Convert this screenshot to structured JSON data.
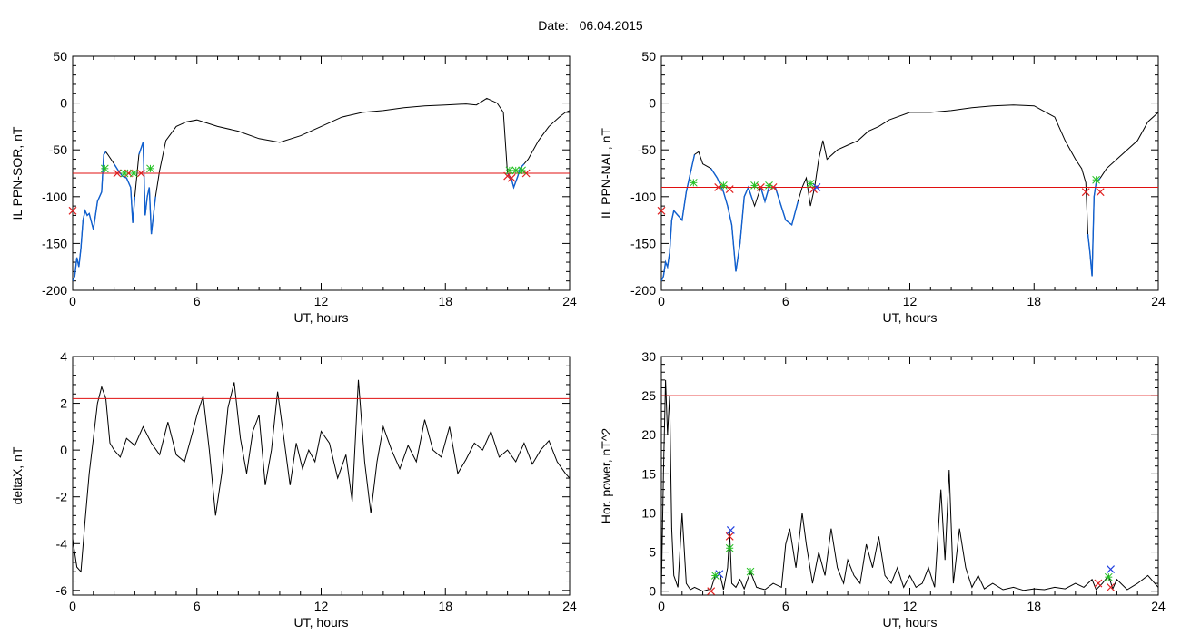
{
  "page": {
    "title_label": "Date:",
    "title_date": "06.04.2015"
  },
  "colors": {
    "trace": "#000000",
    "threshold": "#e01010",
    "segment": "#1060d0",
    "marker_start": "#22c022",
    "marker_end": "#e02020",
    "marker_peak": "#2040e0"
  },
  "chart_data": [
    {
      "type": "line",
      "id": "sor",
      "title": "",
      "xlabel": "UT, hours",
      "ylabel": "IL PPN-SOR, nT",
      "xlim": [
        0,
        24
      ],
      "ylim": [
        -200,
        50
      ],
      "xticks": [
        0,
        6,
        12,
        18,
        24
      ],
      "yticks": [
        -200,
        -150,
        -100,
        -50,
        0,
        50
      ],
      "threshold": -75,
      "x": [
        0,
        0.1,
        0.2,
        0.3,
        0.4,
        0.5,
        0.6,
        0.7,
        0.8,
        1.0,
        1.2,
        1.4,
        1.5,
        1.6,
        1.7,
        2.0,
        2.2,
        2.4,
        2.6,
        2.8,
        2.9,
        3.0,
        3.2,
        3.4,
        3.5,
        3.6,
        3.7,
        3.8,
        4.0,
        4.2,
        4.5,
        5.0,
        5.5,
        6.0,
        7.0,
        8.0,
        9.0,
        10.0,
        11.0,
        12.0,
        13.0,
        14.0,
        15.0,
        16.0,
        17.0,
        18.0,
        19.0,
        19.5,
        20.0,
        20.5,
        20.8,
        21.0,
        21.2,
        21.3,
        21.5,
        21.6,
        21.8,
        22.0,
        22.5,
        23.0,
        23.5,
        23.8,
        24.0
      ],
      "y": [
        -190,
        -185,
        -165,
        -175,
        -155,
        -125,
        -115,
        -120,
        -118,
        -135,
        -105,
        -95,
        -55,
        -52,
        -55,
        -65,
        -72,
        -78,
        -80,
        -90,
        -128,
        -100,
        -55,
        -42,
        -120,
        -100,
        -90,
        -140,
        -100,
        -72,
        -40,
        -25,
        -20,
        -18,
        -25,
        -30,
        -38,
        -42,
        -35,
        -25,
        -15,
        -10,
        -8,
        -5,
        -3,
        -2,
        -1,
        -2,
        5,
        0,
        -10,
        -75,
        -82,
        -90,
        -78,
        -70,
        -65,
        -60,
        -40,
        -25,
        -15,
        -10,
        -8
      ],
      "segments": [
        [
          0,
          1.6
        ],
        [
          2.0,
          3.0
        ],
        [
          3.2,
          4.0
        ],
        [
          21.0,
          21.8
        ]
      ],
      "markers_start": [
        [
          1.55,
          -70
        ],
        [
          2.5,
          -75
        ],
        [
          2.95,
          -75
        ],
        [
          3.75,
          -70
        ],
        [
          21.1,
          -72
        ],
        [
          21.4,
          -72
        ],
        [
          21.7,
          -72
        ]
      ],
      "markers_end": [
        [
          0,
          -115
        ],
        [
          2.15,
          -75
        ],
        [
          2.7,
          -75
        ],
        [
          3.3,
          -75
        ],
        [
          21.0,
          -78
        ],
        [
          21.2,
          -80
        ],
        [
          21.9,
          -75
        ]
      ]
    },
    {
      "type": "line",
      "id": "nal",
      "title": "",
      "xlabel": "UT, hours",
      "ylabel": "IL PPN-NAL, nT",
      "xlim": [
        0,
        24
      ],
      "ylim": [
        -200,
        50
      ],
      "xticks": [
        0,
        6,
        12,
        18,
        24
      ],
      "yticks": [
        -200,
        -150,
        -100,
        -50,
        0,
        50
      ],
      "threshold": -90,
      "x": [
        0,
        0.1,
        0.2,
        0.3,
        0.4,
        0.5,
        0.6,
        0.8,
        1.0,
        1.2,
        1.4,
        1.6,
        1.8,
        2.0,
        2.4,
        2.7,
        3.0,
        3.2,
        3.4,
        3.6,
        3.8,
        4.0,
        4.2,
        4.5,
        4.8,
        5.0,
        5.2,
        5.5,
        6.0,
        6.3,
        6.6,
        6.8,
        7.0,
        7.2,
        7.4,
        7.6,
        7.8,
        8.0,
        8.5,
        9.0,
        9.5,
        10.0,
        10.5,
        11.0,
        12.0,
        13.0,
        14.0,
        15.0,
        16.0,
        17.0,
        18.0,
        19.0,
        19.5,
        20.0,
        20.3,
        20.5,
        20.6,
        20.7,
        20.8,
        20.9,
        21.0,
        21.2,
        21.5,
        22.0,
        23.0,
        23.5,
        24.0
      ],
      "y": [
        -190,
        -185,
        -170,
        -175,
        -160,
        -125,
        -115,
        -120,
        -125,
        -95,
        -75,
        -55,
        -52,
        -65,
        -70,
        -80,
        -95,
        -110,
        -130,
        -180,
        -150,
        -100,
        -90,
        -110,
        -90,
        -105,
        -90,
        -90,
        -125,
        -130,
        -105,
        -90,
        -80,
        -110,
        -90,
        -60,
        -40,
        -60,
        -50,
        -45,
        -40,
        -30,
        -25,
        -18,
        -10,
        -10,
        -8,
        -5,
        -3,
        -2,
        -3,
        -15,
        -40,
        -60,
        -70,
        -85,
        -140,
        -160,
        -185,
        -100,
        -85,
        -80,
        -70,
        -60,
        -40,
        -20,
        -10
      ],
      "segments": [
        [
          0,
          1.6
        ],
        [
          2.4,
          3.4
        ],
        [
          3.4,
          4.4
        ],
        [
          4.8,
          6.6
        ],
        [
          20.6,
          21.2
        ]
      ],
      "markers_start": [
        [
          1.55,
          -85
        ],
        [
          3.0,
          -88
        ],
        [
          4.5,
          -88
        ],
        [
          5.2,
          -88
        ],
        [
          7.2,
          -86
        ],
        [
          21.0,
          -82
        ]
      ],
      "markers_end": [
        [
          0,
          -115
        ],
        [
          2.75,
          -90
        ],
        [
          3.3,
          -92
        ],
        [
          4.8,
          -90
        ],
        [
          5.4,
          -90
        ],
        [
          7.35,
          -92
        ],
        [
          20.5,
          -95
        ],
        [
          21.2,
          -95
        ]
      ],
      "markers_peak": [
        [
          7.5,
          -90
        ]
      ]
    },
    {
      "type": "line",
      "id": "deltax",
      "title": "",
      "xlabel": "UT, hours",
      "ylabel": "deltaX, nT",
      "xlim": [
        0,
        24
      ],
      "ylim": [
        -6.2,
        4
      ],
      "xticks": [
        0,
        6,
        12,
        18,
        24
      ],
      "yticks": [
        -6,
        -4,
        -2,
        0,
        2,
        4
      ],
      "threshold": 2.2,
      "x": [
        0,
        0.2,
        0.4,
        0.6,
        0.8,
        1.0,
        1.2,
        1.4,
        1.6,
        1.8,
        2.0,
        2.3,
        2.6,
        3.0,
        3.4,
        3.8,
        4.2,
        4.6,
        5.0,
        5.4,
        5.8,
        6.0,
        6.3,
        6.6,
        6.9,
        7.2,
        7.5,
        7.8,
        8.1,
        8.4,
        8.7,
        9.0,
        9.3,
        9.6,
        9.9,
        10.2,
        10.5,
        10.8,
        11.1,
        11.4,
        11.7,
        12.0,
        12.4,
        12.8,
        13.2,
        13.5,
        13.8,
        14.1,
        14.4,
        14.7,
        15.0,
        15.4,
        15.8,
        16.2,
        16.6,
        17.0,
        17.4,
        17.8,
        18.2,
        18.6,
        19.0,
        19.4,
        19.8,
        20.2,
        20.6,
        21.0,
        21.4,
        21.8,
        22.2,
        22.6,
        23.0,
        23.4,
        23.8,
        24.0
      ],
      "y": [
        -3.8,
        -5.0,
        -5.2,
        -3.0,
        -1.0,
        0.5,
        2.0,
        2.7,
        2.2,
        0.3,
        0.0,
        -0.3,
        0.5,
        0.2,
        1.0,
        0.3,
        -0.2,
        1.2,
        -0.2,
        -0.5,
        0.8,
        1.5,
        2.3,
        0.0,
        -2.8,
        -1.0,
        1.8,
        2.9,
        0.5,
        -1.0,
        0.8,
        1.5,
        -1.5,
        0.0,
        2.5,
        0.5,
        -1.5,
        0.3,
        -0.8,
        0.0,
        -0.5,
        0.8,
        0.3,
        -1.2,
        -0.2,
        -2.2,
        3.0,
        -0.5,
        -2.7,
        -0.5,
        1.0,
        0.0,
        -0.8,
        0.2,
        -0.5,
        1.3,
        0.0,
        -0.3,
        1.0,
        -1.0,
        -0.4,
        0.3,
        0.0,
        0.8,
        -0.3,
        0.0,
        -0.5,
        0.3,
        -0.6,
        0.0,
        0.4,
        -0.5,
        -1.0,
        -1.2
      ]
    },
    {
      "type": "line",
      "id": "power",
      "title": "",
      "xlabel": "UT, hours",
      "ylabel": "Hor. power, nT^2",
      "xlim": [
        0,
        24
      ],
      "ylim": [
        -0.5,
        30
      ],
      "xticks": [
        0,
        6,
        12,
        18,
        24
      ],
      "yticks": [
        0,
        5,
        10,
        15,
        20,
        25,
        30
      ],
      "threshold": 25,
      "x": [
        0,
        0.1,
        0.2,
        0.3,
        0.4,
        0.5,
        0.6,
        0.8,
        1.0,
        1.2,
        1.4,
        1.6,
        2.0,
        2.4,
        2.6,
        2.8,
        3.0,
        3.2,
        3.3,
        3.4,
        3.6,
        3.8,
        4.0,
        4.3,
        4.6,
        5.0,
        5.4,
        5.8,
        6.0,
        6.2,
        6.5,
        6.8,
        7.0,
        7.3,
        7.6,
        7.9,
        8.2,
        8.5,
        8.8,
        9.0,
        9.3,
        9.6,
        9.9,
        10.2,
        10.5,
        10.8,
        11.1,
        11.4,
        11.7,
        12.0,
        12.3,
        12.6,
        12.9,
        13.2,
        13.5,
        13.7,
        13.9,
        14.1,
        14.4,
        14.7,
        15.0,
        15.3,
        15.6,
        16.0,
        16.5,
        17.0,
        17.5,
        18.0,
        18.5,
        19.0,
        19.5,
        20.0,
        20.4,
        20.8,
        21.0,
        21.3,
        21.6,
        21.8,
        22.0,
        22.5,
        23.0,
        23.5,
        24.0
      ],
      "y": [
        0,
        15,
        27,
        20,
        25,
        8,
        2,
        0.5,
        10,
        1,
        0.2,
        0.5,
        0,
        0.3,
        2,
        2.5,
        0.2,
        3,
        7.5,
        1,
        0.5,
        1.5,
        0.3,
        2.5,
        0.5,
        0.2,
        1,
        0.5,
        6,
        8,
        3,
        10,
        6,
        1,
        5,
        2,
        8,
        3,
        1,
        4,
        2,
        1,
        6,
        3,
        7,
        2,
        1,
        3,
        0.5,
        2,
        0.5,
        1,
        3,
        0.5,
        13,
        4,
        15.5,
        1,
        8,
        3,
        0.5,
        2,
        0.3,
        1,
        0.2,
        0.5,
        0.1,
        0.3,
        0.2,
        0.5,
        0.3,
        1,
        0.5,
        1.5,
        0.2,
        1,
        2,
        0.3,
        1.5,
        0.2,
        1,
        2,
        0.5
      ],
      "markers_start": [
        [
          2.6,
          2
        ],
        [
          3.3,
          5.5
        ],
        [
          4.3,
          2.5
        ],
        [
          21.6,
          1.8
        ]
      ],
      "markers_end": [
        [
          2.4,
          0
        ],
        [
          3.3,
          7
        ],
        [
          21.1,
          1
        ],
        [
          21.7,
          0.5
        ]
      ],
      "markers_peak": [
        [
          2.8,
          2.2
        ],
        [
          3.35,
          7.8
        ],
        [
          21.7,
          2.8
        ]
      ]
    }
  ]
}
